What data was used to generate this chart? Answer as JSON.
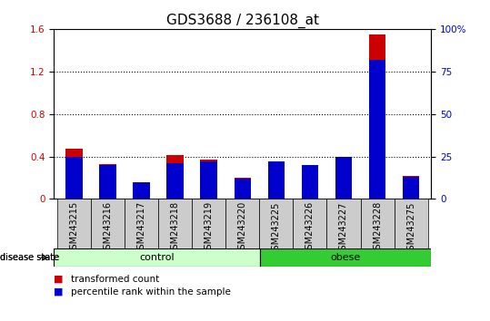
{
  "title": "GDS3688 / 236108_at",
  "samples": [
    "GSM243215",
    "GSM243216",
    "GSM243217",
    "GSM243218",
    "GSM243219",
    "GSM243220",
    "GSM243225",
    "GSM243226",
    "GSM243227",
    "GSM243228",
    "GSM243275"
  ],
  "transformed_count": [
    0.47,
    0.33,
    0.13,
    0.41,
    0.37,
    0.2,
    0.35,
    0.32,
    0.38,
    1.55,
    0.22
  ],
  "percentile_rank_pct": [
    25,
    20,
    10,
    21,
    22,
    12,
    22,
    20,
    25,
    82,
    13
  ],
  "left_ylim": [
    0,
    1.6
  ],
  "right_ylim": [
    0,
    100
  ],
  "left_yticks": [
    0,
    0.4,
    0.8,
    1.2,
    1.6
  ],
  "right_yticks": [
    0,
    25,
    50,
    75,
    100
  ],
  "right_yticklabels": [
    "0",
    "25",
    "50",
    "75",
    "100%"
  ],
  "left_color": "#cc0000",
  "right_color": "#0000cc",
  "bar_width": 0.5,
  "n_control": 6,
  "n_obese": 5,
  "control_label": "control",
  "obese_label": "obese",
  "disease_state_label": "disease state",
  "legend_red_label": "transformed count",
  "legend_blue_label": "percentile rank within the sample",
  "control_color": "#ccffcc",
  "obese_color": "#33cc33",
  "tick_bg_color": "#cccccc",
  "title_fontsize": 11,
  "tick_fontsize": 7.5,
  "label_fontsize": 8
}
